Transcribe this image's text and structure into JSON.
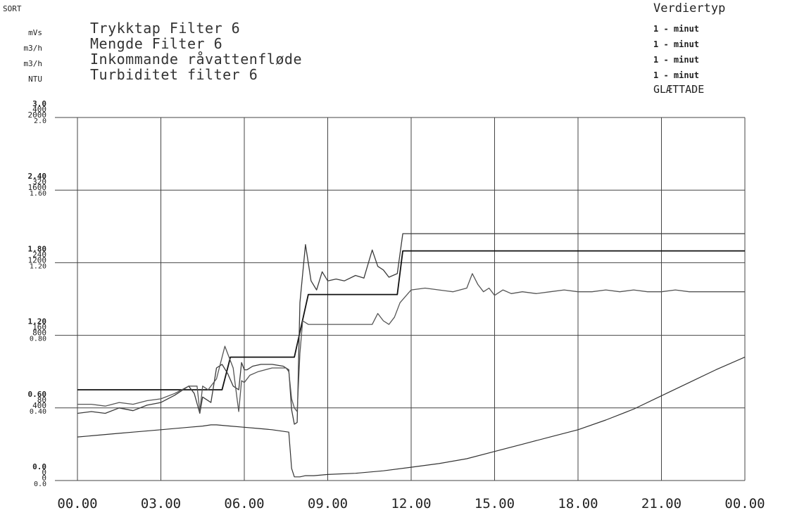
{
  "header": {
    "corner_label": "SORT",
    "value_type_heading": "Verdiertyp",
    "smoothed_label": "GLÆTTADE"
  },
  "legend": [
    {
      "unit": "mVs",
      "title": "Trykktap Filter 6",
      "value_type": "1 - minut"
    },
    {
      "unit": "m3/h",
      "title": "Mengde Filter 6",
      "value_type": "1 - minut"
    },
    {
      "unit": "m3/h",
      "title": "Inkommande råvattenfløde",
      "value_type": "1 - minut"
    },
    {
      "unit": "NTU",
      "title": "Turbiditet filter 6",
      "value_type": "1 - minut"
    }
  ],
  "chart_data": {
    "type": "line",
    "x_ticks": [
      "00.00",
      "03.00",
      "06.00",
      "09.00",
      "12.00",
      "15.00",
      "18.00",
      "21.00",
      "00.00"
    ],
    "xlim": [
      0,
      24
    ],
    "y_axes": [
      {
        "unit": "mVs",
        "ylim": [
          0,
          3.0
        ],
        "ticks": [
          "0.0",
          "0.60",
          "1.20",
          "1.80",
          "2.40",
          "3.0"
        ]
      },
      {
        "unit": "m3/h",
        "ylim": [
          0,
          400
        ],
        "ticks": [
          "0",
          "80",
          "160",
          "240",
          "320",
          "400"
        ]
      },
      {
        "unit": "m3/h",
        "ylim": [
          0,
          2000
        ],
        "ticks": [
          "0",
          "400",
          "800",
          "1200",
          "1600",
          "2000"
        ]
      },
      {
        "unit": "NTU",
        "ylim": [
          0,
          2.0
        ],
        "ticks": [
          "0.0",
          "0.40",
          "0.80",
          "1.20",
          "1.60",
          "2.0"
        ]
      }
    ],
    "y_tick_groups": [
      [
        "3.0",
        "400",
        "2000",
        "2.0"
      ],
      [
        "2.40",
        "320",
        "1600",
        "1.60"
      ],
      [
        "1.80",
        "240",
        "1200",
        "1.20"
      ],
      [
        "1.20",
        "160",
        "800",
        "0.80"
      ],
      [
        "0.60",
        "80",
        "400",
        "0.40"
      ],
      [
        "0.0",
        "0",
        "0",
        "0.0"
      ]
    ],
    "grid": true,
    "series": [
      {
        "name": "Trykktap Filter 6",
        "color": "#333333",
        "width": 1.2,
        "x": [
          0,
          0.5,
          1,
          1.5,
          2,
          3,
          4,
          4.5,
          4.8,
          5,
          5.5,
          6,
          6.5,
          7,
          7.6,
          7.7,
          7.8,
          8,
          8.2,
          8.5,
          9,
          10,
          11,
          12,
          13,
          14,
          15,
          16,
          17,
          18,
          19,
          20,
          21,
          22,
          23,
          24
        ],
        "y": [
          0.36,
          0.37,
          0.38,
          0.39,
          0.4,
          0.42,
          0.44,
          0.45,
          0.46,
          0.46,
          0.45,
          0.44,
          0.43,
          0.42,
          0.4,
          0.1,
          0.03,
          0.03,
          0.04,
          0.04,
          0.05,
          0.06,
          0.08,
          0.11,
          0.14,
          0.18,
          0.24,
          0.3,
          0.36,
          0.42,
          0.5,
          0.59,
          0.7,
          0.81,
          0.92,
          1.02
        ]
      },
      {
        "name": "Mengde Filter 6",
        "color": "#111111",
        "width": 1.8,
        "x": [
          0,
          3,
          4.5,
          5.2,
          5.5,
          7.5,
          7.8,
          8.3,
          8.6,
          9,
          10,
          11,
          11.5,
          11.7,
          12,
          13,
          14,
          15,
          16,
          17,
          18,
          19,
          20,
          21,
          22,
          23,
          24
        ],
        "y": [
          100,
          100,
          100,
          100,
          136,
          136,
          136,
          205,
          205,
          205,
          205,
          205,
          205,
          253,
          253,
          253,
          253,
          253,
          253,
          253,
          253,
          253,
          253,
          253,
          253,
          253,
          253
        ]
      },
      {
        "name": "Inkommande råvattenfløde",
        "color": "#3a3a3a",
        "width": 1.3,
        "x": [
          0,
          0.5,
          1,
          1.5,
          2,
          2.5,
          3,
          3.5,
          4,
          4.2,
          4.4,
          4.5,
          4.8,
          5,
          5.2,
          5.4,
          5.6,
          5.8,
          5.9,
          6,
          6.1,
          6.3,
          6.6,
          7,
          7.4,
          7.6,
          7.7,
          7.8,
          7.9,
          8,
          8.2,
          8.4,
          8.6,
          8.8,
          9,
          9.3,
          9.6,
          10,
          10.3,
          10.6,
          10.8,
          11,
          11.2,
          11.5,
          11.7,
          12,
          12.5,
          13,
          13.5,
          14,
          14.2,
          14.4,
          14.6,
          14.8,
          15,
          15.3,
          15.6,
          16,
          16.5,
          17,
          17.5,
          18,
          18.5,
          19,
          19.5,
          20,
          20.5,
          21,
          21.5,
          22,
          22.5,
          23,
          23.5,
          24
        ],
        "y": [
          370,
          380,
          370,
          400,
          385,
          415,
          430,
          470,
          520,
          480,
          370,
          460,
          430,
          620,
          640,
          590,
          520,
          500,
          650,
          610,
          610,
          630,
          640,
          640,
          630,
          610,
          390,
          310,
          320,
          980,
          1300,
          1100,
          1050,
          1150,
          1100,
          1110,
          1100,
          1130,
          1115,
          1270,
          1180,
          1160,
          1120,
          1140,
          1360,
          1360,
          1360,
          1360,
          1360,
          1360,
          1360,
          1360,
          1360,
          1360,
          1360,
          1360,
          1360,
          1360,
          1360,
          1360,
          1360,
          1360,
          1360,
          1360,
          1360,
          1360,
          1360,
          1360,
          1360,
          1360,
          1360,
          1360,
          1360,
          1360
        ]
      },
      {
        "name": "Turbiditet filter 6",
        "color": "#555555",
        "width": 1.3,
        "x": [
          0,
          0.5,
          1,
          1.5,
          2,
          2.5,
          3,
          3.5,
          4,
          4.3,
          4.4,
          4.5,
          4.7,
          5,
          5.3,
          5.4,
          5.6,
          5.7,
          5.8,
          5.9,
          6,
          6.2,
          6.5,
          7,
          7.5,
          7.6,
          7.7,
          7.8,
          7.9,
          8,
          8.1,
          8.3,
          8.5,
          8.7,
          8.9,
          9,
          9.3,
          9.6,
          10,
          10.3,
          10.6,
          10.8,
          11,
          11.2,
          11.4,
          11.6,
          12,
          12.5,
          13,
          13.5,
          14,
          14.2,
          14.4,
          14.6,
          14.8,
          15,
          15.3,
          15.6,
          16,
          16.5,
          17,
          17.5,
          18,
          18.5,
          19,
          19.5,
          20,
          20.5,
          21,
          21.5,
          22,
          22.5,
          23,
          23.5,
          24
        ],
        "y": [
          0.42,
          0.42,
          0.41,
          0.43,
          0.42,
          0.44,
          0.45,
          0.48,
          0.52,
          0.52,
          0.38,
          0.52,
          0.5,
          0.56,
          0.74,
          0.7,
          0.62,
          0.5,
          0.38,
          0.55,
          0.54,
          0.58,
          0.6,
          0.62,
          0.62,
          0.6,
          0.45,
          0.4,
          0.38,
          0.7,
          0.88,
          0.86,
          0.86,
          0.86,
          0.86,
          0.86,
          0.86,
          0.86,
          0.86,
          0.86,
          0.86,
          0.92,
          0.88,
          0.86,
          0.9,
          0.98,
          1.05,
          1.06,
          1.05,
          1.04,
          1.06,
          1.14,
          1.08,
          1.04,
          1.06,
          1.02,
          1.05,
          1.03,
          1.04,
          1.03,
          1.04,
          1.05,
          1.04,
          1.04,
          1.05,
          1.04,
          1.05,
          1.04,
          1.04,
          1.05,
          1.04,
          1.04,
          1.04,
          1.04,
          1.04
        ]
      }
    ]
  }
}
